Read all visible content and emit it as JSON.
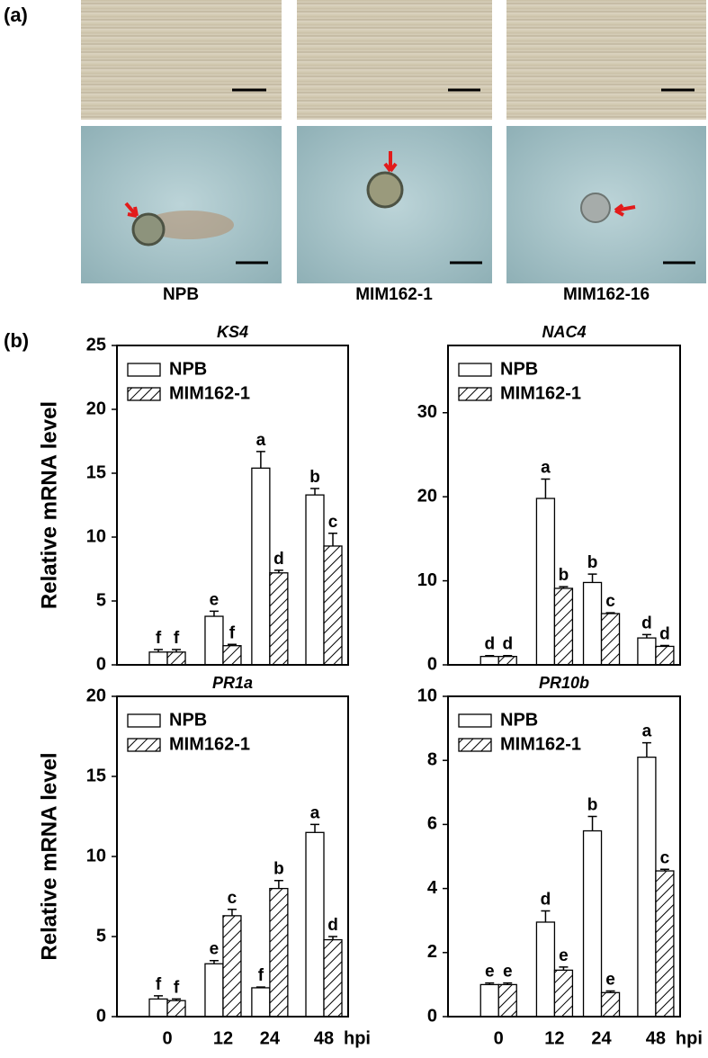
{
  "panel_a": {
    "label": "(a)",
    "images": [
      "NPB",
      "MIM162-1",
      "MIM162-16"
    ]
  },
  "panel_b": {
    "label": "(b)"
  },
  "chart_data": [
    {
      "type": "bar",
      "title": "KS4",
      "ylabel": "Relative mRNA level",
      "categories": [
        null,
        null,
        null,
        null
      ],
      "ylim": [
        0,
        25
      ],
      "yticks": [
        0,
        5,
        10,
        15,
        20,
        25
      ],
      "legend": "upper left",
      "series": [
        {
          "name": "NPB",
          "color": "#ffffff",
          "hatch": false,
          "values": [
            1.0,
            3.8,
            15.4,
            13.3
          ],
          "errors": [
            0.2,
            0.4,
            1.3,
            0.5
          ],
          "letters": [
            "f",
            "e",
            "a",
            "b"
          ]
        },
        {
          "name": "MIM162-1",
          "color": "#ffffff",
          "hatch": true,
          "values": [
            1.0,
            1.5,
            7.2,
            9.3
          ],
          "errors": [
            0.2,
            0.1,
            0.2,
            1.0
          ],
          "letters": [
            "f",
            "f",
            "d",
            "c"
          ]
        }
      ]
    },
    {
      "type": "bar",
      "title": "NAC4",
      "categories": [
        null,
        null,
        null,
        null
      ],
      "ylim": [
        0,
        38
      ],
      "yticks": [
        0,
        10,
        20,
        30
      ],
      "legend": "upper left",
      "series": [
        {
          "name": "NPB",
          "color": "#ffffff",
          "hatch": false,
          "values": [
            1.0,
            19.8,
            9.8,
            3.2
          ],
          "errors": [
            0.1,
            2.3,
            1.0,
            0.4
          ],
          "letters": [
            "d",
            "a",
            "b",
            "d"
          ]
        },
        {
          "name": "MIM162-1",
          "color": "#ffffff",
          "hatch": true,
          "values": [
            1.0,
            9.1,
            6.1,
            2.2
          ],
          "errors": [
            0.1,
            0.2,
            0.1,
            0.1
          ],
          "letters": [
            "d",
            "b",
            "c",
            "d"
          ]
        }
      ]
    },
    {
      "type": "bar",
      "title": "PR1a",
      "ylabel": "Relative mRNA level",
      "xlabel": "hpi",
      "categories": [
        "0",
        "12",
        "24",
        "48"
      ],
      "ylim": [
        0,
        20
      ],
      "yticks": [
        0,
        5,
        10,
        15,
        20
      ],
      "legend": "upper left",
      "series": [
        {
          "name": "NPB",
          "color": "#ffffff",
          "hatch": false,
          "values": [
            1.1,
            3.3,
            1.8,
            11.5
          ],
          "errors": [
            0.2,
            0.2,
            0.05,
            0.5
          ],
          "letters": [
            "f",
            "e",
            "f",
            "a"
          ]
        },
        {
          "name": "MIM162-1",
          "color": "#ffffff",
          "hatch": true,
          "values": [
            1.0,
            6.3,
            8.0,
            4.8
          ],
          "errors": [
            0.1,
            0.4,
            0.5,
            0.2
          ],
          "letters": [
            "f",
            "c",
            "b",
            "d"
          ]
        }
      ]
    },
    {
      "type": "bar",
      "title": "PR10b",
      "xlabel": "hpi",
      "categories": [
        "0",
        "12",
        "24",
        "48"
      ],
      "ylim": [
        0,
        10
      ],
      "yticks": [
        0,
        2,
        4,
        6,
        8,
        10
      ],
      "legend": "upper left",
      "series": [
        {
          "name": "NPB",
          "color": "#ffffff",
          "hatch": false,
          "values": [
            1.0,
            2.95,
            5.8,
            8.1
          ],
          "errors": [
            0.05,
            0.35,
            0.45,
            0.45
          ],
          "letters": [
            "e",
            "d",
            "b",
            "a"
          ]
        },
        {
          "name": "MIM162-1",
          "color": "#ffffff",
          "hatch": true,
          "values": [
            1.0,
            1.45,
            0.75,
            4.55
          ],
          "errors": [
            0.05,
            0.1,
            0.05,
            0.05
          ],
          "letters": [
            "e",
            "e",
            "e",
            "c"
          ]
        }
      ]
    }
  ]
}
